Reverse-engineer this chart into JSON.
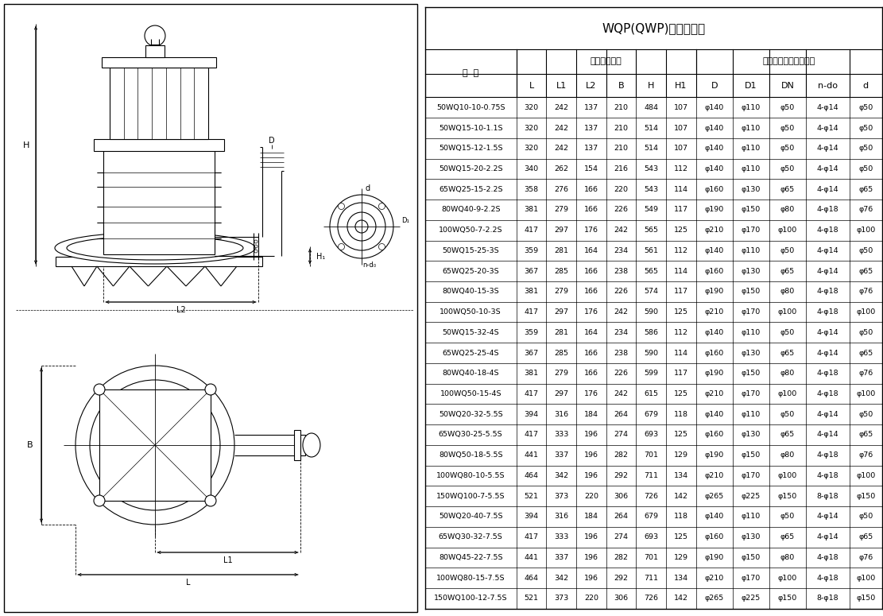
{
  "title": "WQP(QWP)安装尺寸表",
  "col_headers": [
    "型  号",
    "L",
    "L1",
    "L2",
    "B",
    "H",
    "H1",
    "D",
    "D1",
    "DN",
    "n-do",
    "d"
  ],
  "subheader1": "外形安装尺寸",
  "subheader2": "泵出口法兰及连接尺寸",
  "rows": [
    [
      "50WQ10-10-0.75S",
      "320",
      "242",
      "137",
      "210",
      "484",
      "107",
      "φ140",
      "φ110",
      "φ50",
      "4-φ14",
      "φ50"
    ],
    [
      "50WQ15-10-1.1S",
      "320",
      "242",
      "137",
      "210",
      "514",
      "107",
      "φ140",
      "φ110",
      "φ50",
      "4-φ14",
      "φ50"
    ],
    [
      "50WQ15-12-1.5S",
      "320",
      "242",
      "137",
      "210",
      "514",
      "107",
      "φ140",
      "φ110",
      "φ50",
      "4-φ14",
      "φ50"
    ],
    [
      "50WQ15-20-2.2S",
      "340",
      "262",
      "154",
      "216",
      "543",
      "112",
      "φ140",
      "φ110",
      "φ50",
      "4-φ14",
      "φ50"
    ],
    [
      "65WQ25-15-2.2S",
      "358",
      "276",
      "166",
      "220",
      "543",
      "114",
      "φ160",
      "φ130",
      "φ65",
      "4-φ14",
      "φ65"
    ],
    [
      "80WQ40-9-2.2S",
      "381",
      "279",
      "166",
      "226",
      "549",
      "117",
      "φ190",
      "φ150",
      "φ80",
      "4-φ18",
      "φ76"
    ],
    [
      "100WQ50-7-2.2S",
      "417",
      "297",
      "176",
      "242",
      "565",
      "125",
      "φ210",
      "φ170",
      "φ100",
      "4-φ18",
      "φ100"
    ],
    [
      "50WQ15-25-3S",
      "359",
      "281",
      "164",
      "234",
      "561",
      "112",
      "φ140",
      "φ110",
      "φ50",
      "4-φ14",
      "φ50"
    ],
    [
      "65WQ25-20-3S",
      "367",
      "285",
      "166",
      "238",
      "565",
      "114",
      "φ160",
      "φ130",
      "φ65",
      "4-φ14",
      "φ65"
    ],
    [
      "80WQ40-15-3S",
      "381",
      "279",
      "166",
      "226",
      "574",
      "117",
      "φ190",
      "φ150",
      "φ80",
      "4-φ18",
      "φ76"
    ],
    [
      "100WQ50-10-3S",
      "417",
      "297",
      "176",
      "242",
      "590",
      "125",
      "φ210",
      "φ170",
      "φ100",
      "4-φ18",
      "φ100"
    ],
    [
      "50WQ15-32-4S",
      "359",
      "281",
      "164",
      "234",
      "586",
      "112",
      "φ140",
      "φ110",
      "φ50",
      "4-φ14",
      "φ50"
    ],
    [
      "65WQ25-25-4S",
      "367",
      "285",
      "166",
      "238",
      "590",
      "114",
      "φ160",
      "φ130",
      "φ65",
      "4-φ14",
      "φ65"
    ],
    [
      "80WQ40-18-4S",
      "381",
      "279",
      "166",
      "226",
      "599",
      "117",
      "φ190",
      "φ150",
      "φ80",
      "4-φ18",
      "φ76"
    ],
    [
      "100WQ50-15-4S",
      "417",
      "297",
      "176",
      "242",
      "615",
      "125",
      "φ210",
      "φ170",
      "φ100",
      "4-φ18",
      "φ100"
    ],
    [
      "50WQ20-32-5.5S",
      "394",
      "316",
      "184",
      "264",
      "679",
      "118",
      "φ140",
      "φ110",
      "φ50",
      "4-φ14",
      "φ50"
    ],
    [
      "65WQ30-25-5.5S",
      "417",
      "333",
      "196",
      "274",
      "693",
      "125",
      "φ160",
      "φ130",
      "φ65",
      "4-φ14",
      "φ65"
    ],
    [
      "80WQ50-18-5.5S",
      "441",
      "337",
      "196",
      "282",
      "701",
      "129",
      "φ190",
      "φ150",
      "φ80",
      "4-φ18",
      "φ76"
    ],
    [
      "100WQ80-10-5.5S",
      "464",
      "342",
      "196",
      "292",
      "711",
      "134",
      "φ210",
      "φ170",
      "φ100",
      "4-φ18",
      "φ100"
    ],
    [
      "150WQ100-7-5.5S",
      "521",
      "373",
      "220",
      "306",
      "726",
      "142",
      "φ265",
      "φ225",
      "φ150",
      "8-φ18",
      "φ150"
    ],
    [
      "50WQ20-40-7.5S",
      "394",
      "316",
      "184",
      "264",
      "679",
      "118",
      "φ140",
      "φ110",
      "φ50",
      "4-φ14",
      "φ50"
    ],
    [
      "65WQ30-32-7.5S",
      "417",
      "333",
      "196",
      "274",
      "693",
      "125",
      "φ160",
      "φ130",
      "φ65",
      "4-φ14",
      "φ65"
    ],
    [
      "80WQ45-22-7.5S",
      "441",
      "337",
      "196",
      "282",
      "701",
      "129",
      "φ190",
      "φ150",
      "φ80",
      "4-φ18",
      "φ76"
    ],
    [
      "100WQ80-15-7.5S",
      "464",
      "342",
      "196",
      "292",
      "711",
      "134",
      "φ210",
      "φ170",
      "φ100",
      "4-φ18",
      "φ100"
    ],
    [
      "150WQ100-12-7.5S",
      "521",
      "373",
      "220",
      "306",
      "726",
      "142",
      "φ265",
      "φ225",
      "φ150",
      "8-φ18",
      "φ150"
    ]
  ],
  "bg_color": "#ffffff",
  "line_color": "#000000",
  "draw_split": 0.477,
  "table_split": 0.477,
  "col_widths_rel": [
    2.2,
    0.72,
    0.72,
    0.72,
    0.72,
    0.72,
    0.72,
    0.88,
    0.88,
    0.88,
    1.05,
    0.78
  ],
  "title_fontsize": 11,
  "header_fontsize": 8,
  "cell_fontsize": 6.8
}
